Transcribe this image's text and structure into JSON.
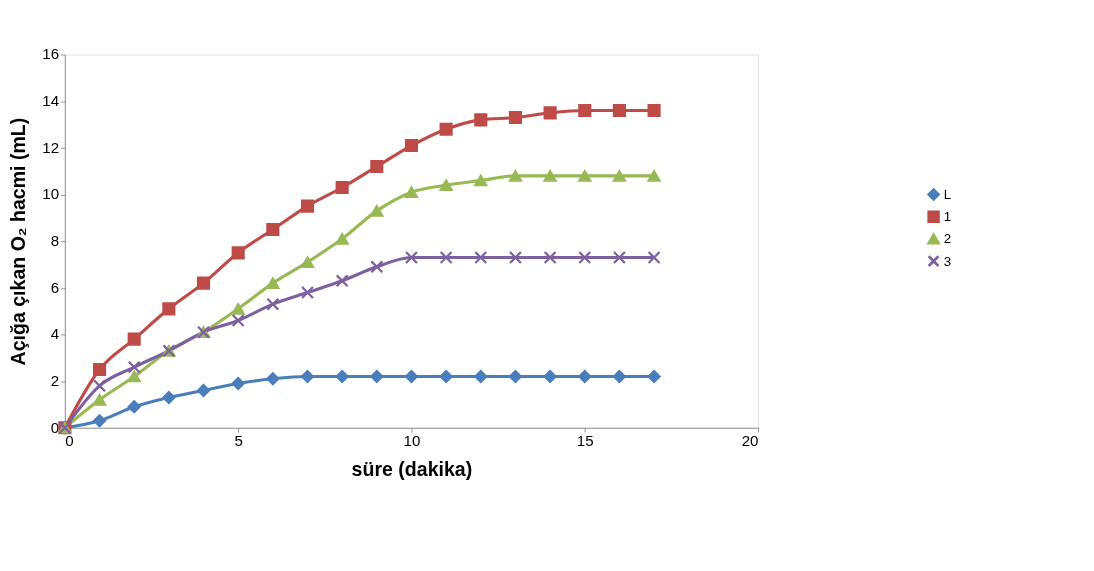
{
  "chart_data": {
    "type": "line",
    "xlabel": "süre (dakika)",
    "ylabel": "Açığa çıkan O₂ hacmi (mL)",
    "x": [
      0,
      1,
      2,
      3,
      4,
      5,
      6,
      7,
      8,
      9,
      10,
      11,
      12,
      13,
      14,
      15,
      16,
      17
    ],
    "xlim": [
      0,
      20
    ],
    "xticks": [
      0,
      5,
      10,
      15,
      20
    ],
    "ylim": [
      0,
      16
    ],
    "yticks": [
      0,
      2,
      4,
      6,
      8,
      10,
      12,
      14,
      16
    ],
    "grid": false,
    "legend": "right",
    "series": [
      {
        "name": "L",
        "color": "#4a7ebb",
        "marker": "diamond",
        "values": [
          0,
          0.3,
          0.9,
          1.3,
          1.6,
          1.9,
          2.1,
          2.2,
          2.2,
          2.2,
          2.2,
          2.2,
          2.2,
          2.2,
          2.2,
          2.2,
          2.2,
          2.2
        ]
      },
      {
        "name": "1",
        "color": "#be4b48",
        "marker": "square",
        "values": [
          0,
          2.5,
          3.8,
          5.1,
          6.2,
          7.5,
          8.5,
          9.5,
          10.3,
          11.2,
          12.1,
          12.8,
          13.2,
          13.3,
          13.5,
          13.6,
          13.6,
          13.6
        ]
      },
      {
        "name": "2",
        "color": "#98b954",
        "marker": "triangle",
        "values": [
          0,
          1.2,
          2.2,
          3.3,
          4.1,
          5.1,
          6.2,
          7.1,
          8.1,
          9.3,
          10.1,
          10.4,
          10.6,
          10.8,
          10.8,
          10.8,
          10.8,
          10.8
        ]
      },
      {
        "name": "3",
        "color": "#7d60a0",
        "marker": "cross",
        "values": [
          0,
          1.8,
          2.6,
          3.3,
          4.1,
          4.6,
          5.3,
          5.8,
          6.3,
          6.9,
          7.3,
          7.3,
          7.3,
          7.3,
          7.3,
          7.3,
          7.3,
          7.3
        ]
      }
    ]
  }
}
